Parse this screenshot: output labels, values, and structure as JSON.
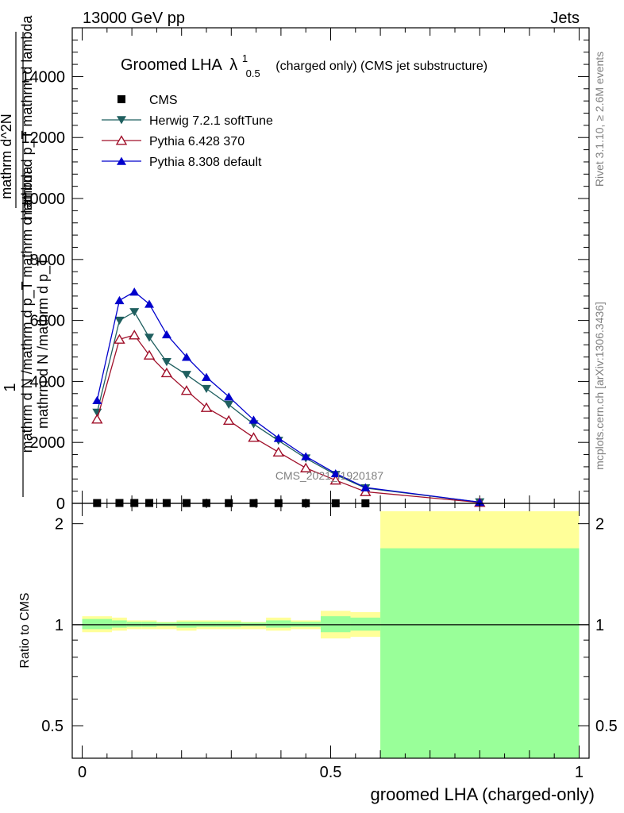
{
  "header": {
    "left": "13000 GeV pp",
    "right": "Jets"
  },
  "title": {
    "main": "Groomed LHA",
    "lambda_sup": "1",
    "lambda_sub": "0.5",
    "rest": "(charged only) (CMS jet substructure)"
  },
  "watermark": "CMS_2021_I1920187",
  "side_labels": {
    "rivet": "Rivet 3.1.10, ≥ 2.6M events",
    "mcplots": "mcplots.cern.ch [arXiv:1306.3436]"
  },
  "ylabel_upper": {
    "frac_num_one": "1",
    "frac_num_rest": "mathrm d N /mathrm d p_T mathrm d lambda",
    "frac_den": "mathrm d N /mathrm d p_T",
    "stacked_num": "mathrm d^2N",
    "stacked_den": "mathrm d p_T mathrm d lambda"
  },
  "ylabel_ratio": "Ratio to CMS",
  "xlabel": "groomed LHA (charged-only)",
  "chart_data": {
    "type": "line",
    "upper": {
      "xlim": [
        -0.02,
        1.02
      ],
      "ylim": [
        0,
        15600
      ],
      "yticks": [
        0,
        2000,
        4000,
        6000,
        8000,
        10000,
        12000,
        14000
      ],
      "ytick_labels": [
        "0",
        "2000",
        "4000",
        "6000",
        "8000",
        "10000",
        "12000",
        "14000"
      ],
      "legend": {
        "position": "top-left"
      },
      "series": [
        {
          "name": "CMS",
          "marker": "square",
          "color": "#000000",
          "x": [
            0.03,
            0.075,
            0.105,
            0.135,
            0.17,
            0.21,
            0.25,
            0.295,
            0.345,
            0.395,
            0.45,
            0.51,
            0.57
          ],
          "values": [
            10,
            12,
            12,
            12,
            11,
            10,
            9,
            8,
            7,
            6,
            5,
            4,
            3
          ]
        },
        {
          "name": "Herwig 7.2.1 softTune",
          "marker": "triangle-down",
          "color": "#1f5f5f",
          "x": [
            0.03,
            0.075,
            0.105,
            0.135,
            0.17,
            0.21,
            0.25,
            0.295,
            0.345,
            0.395,
            0.45,
            0.51,
            0.57,
            0.8
          ],
          "values": [
            2980,
            6000,
            6280,
            5440,
            4640,
            4220,
            3760,
            3240,
            2600,
            2060,
            1480,
            940,
            500,
            40
          ]
        },
        {
          "name": "Pythia 6.428 370",
          "marker": "triangle-up-open",
          "color": "#a0102a",
          "x": [
            0.03,
            0.075,
            0.105,
            0.135,
            0.17,
            0.21,
            0.25,
            0.295,
            0.345,
            0.395,
            0.45,
            0.51,
            0.57,
            0.8
          ],
          "values": [
            2760,
            5380,
            5520,
            4860,
            4280,
            3700,
            3140,
            2720,
            2160,
            1680,
            1160,
            760,
            380,
            30
          ]
        },
        {
          "name": "Pythia 8.308 default",
          "marker": "triangle-up",
          "color": "#0000cc",
          "x": [
            0.03,
            0.075,
            0.105,
            0.135,
            0.17,
            0.21,
            0.25,
            0.295,
            0.345,
            0.395,
            0.45,
            0.51,
            0.57,
            0.8
          ],
          "values": [
            3380,
            6660,
            6940,
            6540,
            5540,
            4800,
            4140,
            3500,
            2740,
            2140,
            1540,
            980,
            520,
            40
          ]
        }
      ]
    },
    "ratio": {
      "ylim": [
        0.4,
        2.3
      ],
      "log_scale": true,
      "yticks": [
        0.5,
        1,
        2
      ],
      "ytick_labels": [
        "0.5",
        "1",
        "2"
      ],
      "xticks": [
        0,
        0.5,
        1
      ],
      "xtick_labels": [
        "0",
        "0.5",
        "1"
      ],
      "reference_line": 1,
      "bands": [
        {
          "x0": 0.0,
          "x1": 0.06,
          "yellow": [
            0.95,
            1.06
          ],
          "green": [
            0.97,
            1.04
          ]
        },
        {
          "x0": 0.06,
          "x1": 0.09,
          "yellow": [
            0.96,
            1.05
          ],
          "green": [
            0.98,
            1.03
          ]
        },
        {
          "x0": 0.09,
          "x1": 0.12,
          "yellow": [
            0.97,
            1.03
          ],
          "green": [
            0.985,
            1.02
          ]
        },
        {
          "x0": 0.12,
          "x1": 0.15,
          "yellow": [
            0.97,
            1.03
          ],
          "green": [
            0.985,
            1.02
          ]
        },
        {
          "x0": 0.15,
          "x1": 0.19,
          "yellow": [
            0.97,
            1.02
          ],
          "green": [
            0.99,
            1.015
          ]
        },
        {
          "x0": 0.19,
          "x1": 0.23,
          "yellow": [
            0.96,
            1.03
          ],
          "green": [
            0.98,
            1.02
          ]
        },
        {
          "x0": 0.23,
          "x1": 0.27,
          "yellow": [
            0.97,
            1.03
          ],
          "green": [
            0.985,
            1.02
          ]
        },
        {
          "x0": 0.27,
          "x1": 0.32,
          "yellow": [
            0.97,
            1.03
          ],
          "green": [
            0.985,
            1.02
          ]
        },
        {
          "x0": 0.32,
          "x1": 0.37,
          "yellow": [
            0.97,
            1.02
          ],
          "green": [
            0.99,
            1.015
          ]
        },
        {
          "x0": 0.37,
          "x1": 0.42,
          "yellow": [
            0.96,
            1.05
          ],
          "green": [
            0.98,
            1.03
          ]
        },
        {
          "x0": 0.42,
          "x1": 0.48,
          "yellow": [
            0.97,
            1.03
          ],
          "green": [
            0.985,
            1.02
          ]
        },
        {
          "x0": 0.48,
          "x1": 0.54,
          "yellow": [
            0.91,
            1.1
          ],
          "green": [
            0.95,
            1.06
          ]
        },
        {
          "x0": 0.54,
          "x1": 0.6,
          "yellow": [
            0.92,
            1.09
          ],
          "green": [
            0.96,
            1.05
          ]
        },
        {
          "x0": 0.6,
          "x1": 1.0,
          "yellow": [
            0.4,
            2.18
          ],
          "green": [
            0.4,
            1.69
          ]
        }
      ]
    },
    "colors": {
      "band_yellow": "#ffff99",
      "band_green": "#99ff99"
    }
  }
}
